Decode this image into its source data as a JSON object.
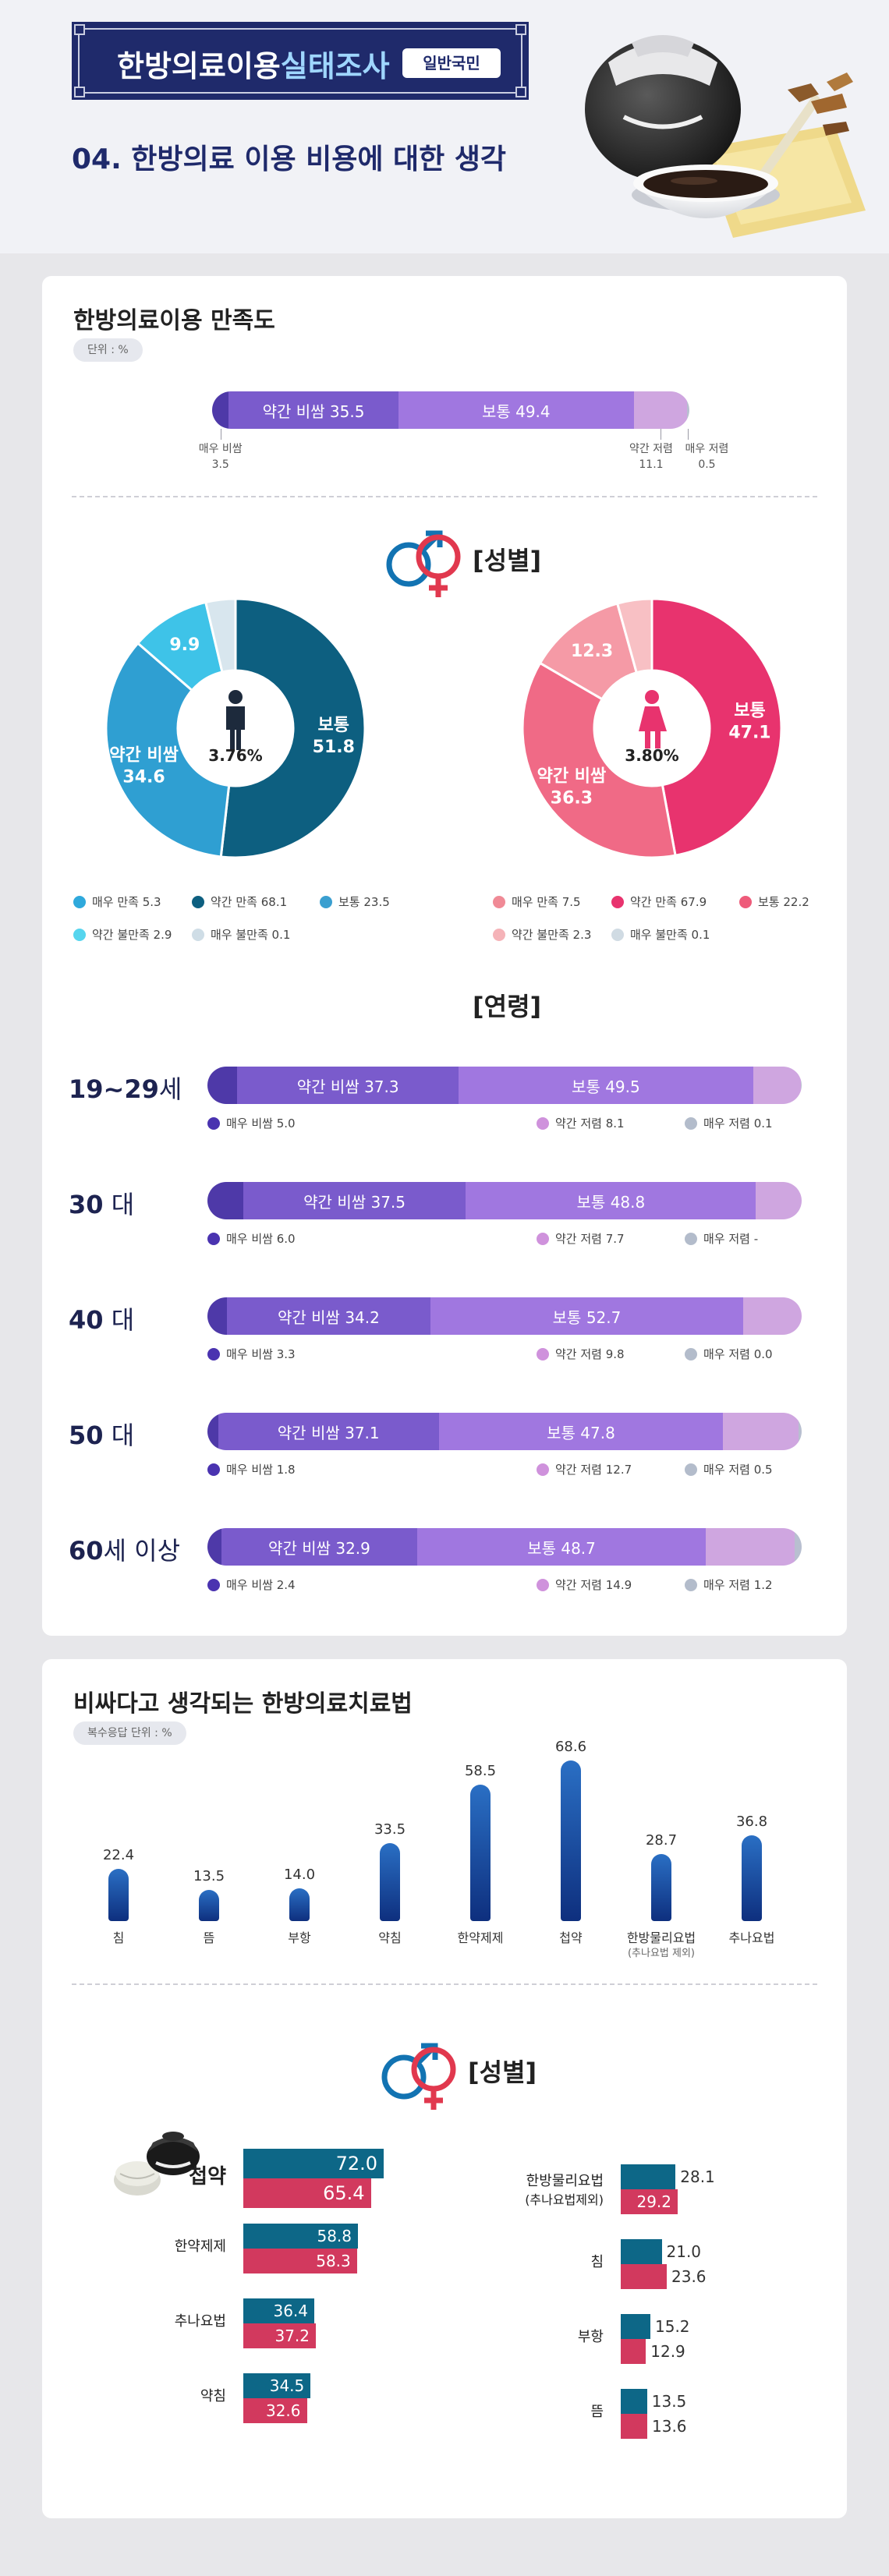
{
  "header": {
    "title_main": "한방의료이용",
    "title_highlight": "실태조사",
    "tag": "일반국민",
    "subtitle": "04. 한방의료 이용 비용에 대한 생각"
  },
  "colors": {
    "navy": "#1f2a6b",
    "male": "#0d6787",
    "female": "#d2395e",
    "very_cheap": "#4e39a8",
    "slightly_cheap": "#7a5bcc",
    "normal": "#a077e0",
    "slightly_expensive": "#cfa6e0",
    "very_expensive": "#b8bfd0"
  },
  "section1": {
    "title": "한방의료이용 만족도",
    "unit": "단위 : %",
    "gender_heading": "[성별]",
    "age_heading": "[연령]"
  },
  "section2": {
    "title": "비싸다고 생각되는 한방의료치료법",
    "unit": "복수응답   단위 : %",
    "gender_heading": "[성별]"
  },
  "chart_data": [
    {
      "type": "bar",
      "subtype": "stacked-horizontal",
      "title": "한방의료이용 만족도",
      "unit": "단위 : %",
      "segments": [
        {
          "key": "vd",
          "label": "매우 비쌈",
          "value": 3.5
        },
        {
          "key": "sd",
          "label": "약간 비쌈",
          "value": 35.5
        },
        {
          "key": "nn",
          "label": "보통",
          "value": 49.4
        },
        {
          "key": "sc",
          "label": "약간 저렴",
          "value": 11.1
        },
        {
          "key": "vc",
          "label": "매우 저렴",
          "value": 0.5
        }
      ]
    },
    {
      "type": "pie",
      "subtype": "donut",
      "group": "남성",
      "center_value": "3.76",
      "center_unit": "%",
      "slices": [
        {
          "label": "보통",
          "value": 51.8,
          "color": "#0d5f80"
        },
        {
          "label": "약간 비쌈",
          "value": 34.6,
          "color": "#2f9fd2"
        },
        {
          "label": "",
          "value": 9.9,
          "color": "#3ec3e8"
        },
        {
          "label": "",
          "value": 3.7,
          "color": "#d8e6ee"
        }
      ],
      "legend": [
        {
          "label": "매우 만족",
          "value": "5.3",
          "color": "#2fa9dc"
        },
        {
          "label": "약간 만족",
          "value": "68.1",
          "color": "#0d5f80"
        },
        {
          "label": "보통",
          "value": "23.5",
          "color": "#3a9fd0"
        },
        {
          "label": "약간 불만족",
          "value": "2.9",
          "color": "#56d5ee"
        },
        {
          "label": "매우 불만족",
          "value": "0.1",
          "color": "#cfdde6"
        }
      ]
    },
    {
      "type": "pie",
      "subtype": "donut",
      "group": "여성",
      "center_value": "3.80",
      "center_unit": "%",
      "slices": [
        {
          "label": "보통",
          "value": 47.1,
          "color": "#e8336e"
        },
        {
          "label": "약간 비쌈",
          "value": 36.3,
          "color": "#f06a86"
        },
        {
          "label": "",
          "value": 12.3,
          "color": "#f59aa6"
        },
        {
          "label": "",
          "value": 4.3,
          "color": "#f8c0c4"
        }
      ],
      "legend": [
        {
          "label": "매우 만족",
          "value": "7.5",
          "color": "#f08a96"
        },
        {
          "label": "약간 만족",
          "value": "67.9",
          "color": "#e8336e"
        },
        {
          "label": "보통",
          "value": "22.2",
          "color": "#ee5b7a"
        },
        {
          "label": "약간 불만족",
          "value": "2.3",
          "color": "#f5b3b8"
        },
        {
          "label": "매우 불만족",
          "value": "0.1",
          "color": "#d0dbe3"
        }
      ]
    },
    {
      "type": "bar",
      "subtype": "stacked-horizontal",
      "title": "[연령]",
      "rows": [
        {
          "label_strong": "19~29",
          "label_rest": "세",
          "vd": "5.0",
          "sd": "37.3",
          "nn": "49.5",
          "sc": "8.1",
          "vc": "0.1"
        },
        {
          "label_strong": "30",
          "label_rest": " 대",
          "vd": "6.0",
          "sd": "37.5",
          "nn": "48.8",
          "sc": "7.7",
          "vc": "-"
        },
        {
          "label_strong": "40",
          "label_rest": " 대",
          "vd": "3.3",
          "sd": "34.2",
          "nn": "52.7",
          "sc": "9.8",
          "vc": "0.0"
        },
        {
          "label_strong": "50",
          "label_rest": " 대",
          "vd": "1.8",
          "sd": "37.1",
          "nn": "47.8",
          "sc": "12.7",
          "vc": "0.5"
        },
        {
          "label_strong": "60",
          "label_rest": "세 이상",
          "vd": "2.4",
          "sd": "32.9",
          "nn": "48.7",
          "sc": "14.9",
          "vc": "1.2"
        }
      ],
      "labels": {
        "vd": "매우 비쌈",
        "sd": "약간 비쌈",
        "nn": "보통",
        "sc": "약간 저렴",
        "vc": "매우 저렴"
      }
    },
    {
      "type": "bar",
      "title": "비싸다고 생각되는 한방의료치료법",
      "unit": "복수응답   단위 : %",
      "categories": [
        "침",
        "뜸",
        "부항",
        "약침",
        "한약제제",
        "첩약",
        "한방물리요법",
        "추나요법"
      ],
      "category_notes": [
        "",
        "",
        "",
        "",
        "",
        "",
        "(추나요법 제외)",
        ""
      ],
      "values": [
        22.4,
        13.5,
        14.0,
        33.5,
        58.5,
        68.6,
        28.7,
        36.8
      ]
    },
    {
      "type": "bar",
      "subtype": "grouped-horizontal",
      "title": "[성별]",
      "series": [
        {
          "name": "남성",
          "color": "#0d6787"
        },
        {
          "name": "여성",
          "color": "#d2395e"
        }
      ],
      "left": [
        {
          "category": "첩약",
          "male": 72.0,
          "female": 65.4
        },
        {
          "category": "한약제제",
          "male": 58.8,
          "female": 58.3
        },
        {
          "category": "추나요법",
          "male": 36.4,
          "female": 37.2
        },
        {
          "category": "약침",
          "male": 34.5,
          "female": 32.6
        }
      ],
      "right": [
        {
          "category": "한방물리요법",
          "note": "(추나요법제외)",
          "male": 28.1,
          "female": 29.2
        },
        {
          "category": "침",
          "note": "",
          "male": 21.0,
          "female": 23.6
        },
        {
          "category": "부항",
          "note": "",
          "male": 15.2,
          "female": 12.9
        },
        {
          "category": "뜸",
          "note": "",
          "male": 13.5,
          "female": 13.6
        }
      ]
    }
  ]
}
